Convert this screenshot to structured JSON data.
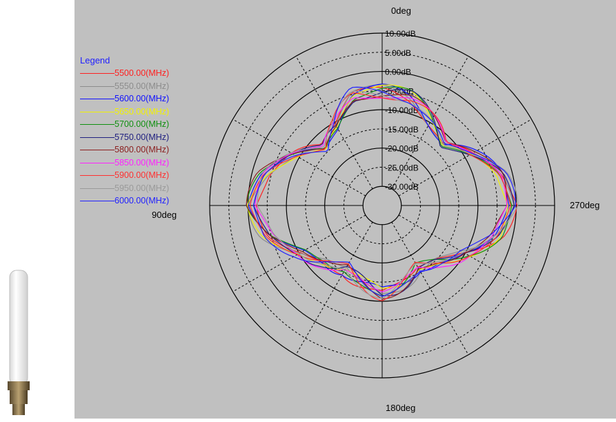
{
  "chart_data": {
    "type": "polar-line",
    "legend_title": "Legend",
    "legend_placement": "top-left",
    "angle_labels": {
      "top": "0deg",
      "left": "90deg",
      "bottom": "180deg",
      "right": "270deg"
    },
    "radial_tick_labels": [
      "10.00dB",
      "5.00dB",
      "0.00dB",
      "-5.00dB",
      "-10.00dB",
      "-15.00dB",
      "-20.00dB",
      "-25.00dB",
      "-30.00dB"
    ],
    "radial_range_db": [
      -35,
      10
    ],
    "radial_rings_db": [
      10,
      5,
      0,
      -5,
      -10,
      -15,
      -20,
      -25,
      -30
    ],
    "angle_direction": "counterclockwise from top (90deg on left)",
    "series": [
      {
        "name": "5500.00(MHz)",
        "color": "#ff2020"
      },
      {
        "name": "5550.00(MHz)",
        "color": "#8c8c8c"
      },
      {
        "name": "5600.00(MHz)",
        "color": "#1010ff"
      },
      {
        "name": "5650.00(MHz)",
        "color": "#f2f200"
      },
      {
        "name": "5700.00(MHz)",
        "color": "#109010"
      },
      {
        "name": "5750.00(MHz)",
        "color": "#202080"
      },
      {
        "name": "5800.00(MHz)",
        "color": "#8b2020"
      },
      {
        "name": "5850.00(MHz)",
        "color": "#ff20ff"
      },
      {
        "name": "5900.00(MHz)",
        "color": "#ff3030"
      },
      {
        "name": "5950.00(MHz)",
        "color": "#9a9a9a"
      },
      {
        "name": "6000.00(MHz)",
        "color": "#2020ff"
      }
    ],
    "pattern_angles_deg": [
      0,
      15,
      30,
      45,
      60,
      75,
      90,
      105,
      120,
      135,
      150,
      165,
      180,
      195,
      210,
      225,
      240,
      255,
      270,
      285,
      300,
      315,
      330,
      345
    ],
    "pattern_gain_db": [
      -5,
      -5,
      -11,
      -14,
      -8,
      -3,
      -1,
      -4,
      -10,
      -14,
      -16,
      -14,
      -12,
      -14,
      -16,
      -14,
      -10,
      -4,
      -1,
      -3,
      -8,
      -12,
      -9,
      -6
    ]
  }
}
